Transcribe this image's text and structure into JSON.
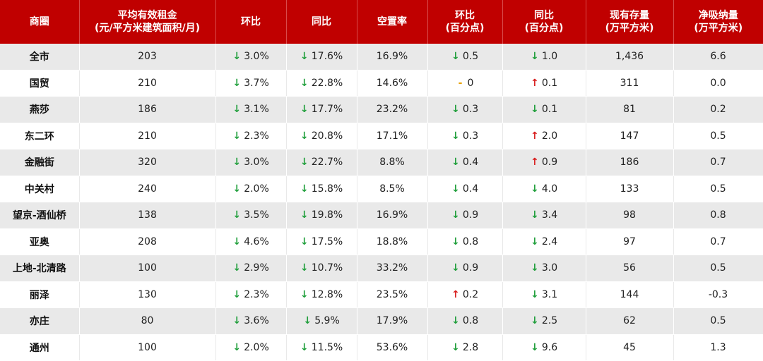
{
  "table": {
    "header": [
      [
        "商圈"
      ],
      [
        "平均有效租金",
        "(元/平方米建筑面积/月)"
      ],
      [
        "环比"
      ],
      [
        "同比"
      ],
      [
        "空置率"
      ],
      [
        "环比",
        "(百分点)"
      ],
      [
        "同比",
        "(百分点)"
      ],
      [
        "现有存量",
        "(万平方米)"
      ],
      [
        "净吸纳量",
        "(万平方米)"
      ]
    ],
    "rows": [
      [
        "全市",
        "203",
        [
          "↓",
          "3.0%"
        ],
        [
          "↓",
          "17.6%"
        ],
        "16.9%",
        [
          "↓",
          "0.5"
        ],
        [
          "↓",
          "1.0"
        ],
        "1,436",
        "6.6"
      ],
      [
        "国贸",
        "210",
        [
          "↓",
          "3.7%"
        ],
        [
          "↓",
          "22.8%"
        ],
        "14.6%",
        [
          "-",
          "0"
        ],
        [
          "↑",
          "0.1"
        ],
        "311",
        "0.0"
      ],
      [
        "燕莎",
        "186",
        [
          "↓",
          "3.1%"
        ],
        [
          "↓",
          "17.7%"
        ],
        "23.2%",
        [
          "↓",
          "0.3"
        ],
        [
          "↓",
          "0.1"
        ],
        "81",
        "0.2"
      ],
      [
        "东二环",
        "210",
        [
          "↓",
          "2.3%"
        ],
        [
          "↓",
          "20.8%"
        ],
        "17.1%",
        [
          "↓",
          "0.3"
        ],
        [
          "↑",
          "2.0"
        ],
        "147",
        "0.5"
      ],
      [
        "金融街",
        "320",
        [
          "↓",
          "3.0%"
        ],
        [
          "↓",
          "22.7%"
        ],
        "8.8%",
        [
          "↓",
          "0.4"
        ],
        [
          "↑",
          "0.9"
        ],
        "186",
        "0.7"
      ],
      [
        "中关村",
        "240",
        [
          "↓",
          "2.0%"
        ],
        [
          "↓",
          "15.8%"
        ],
        "8.5%",
        [
          "↓",
          "0.4"
        ],
        [
          "↓",
          "4.0"
        ],
        "133",
        "0.5"
      ],
      [
        "望京-酒仙桥",
        "138",
        [
          "↓",
          "3.5%"
        ],
        [
          "↓",
          "19.8%"
        ],
        "16.9%",
        [
          "↓",
          "0.9"
        ],
        [
          "↓",
          "3.4"
        ],
        "98",
        "0.8"
      ],
      [
        "亚奥",
        "208",
        [
          "↓",
          "4.6%"
        ],
        [
          "↓",
          "17.5%"
        ],
        "18.8%",
        [
          "↓",
          "0.8"
        ],
        [
          "↓",
          "2.4"
        ],
        "97",
        "0.7"
      ],
      [
        "上地-北清路",
        "100",
        [
          "↓",
          "2.9%"
        ],
        [
          "↓",
          "10.7%"
        ],
        "33.2%",
        [
          "↓",
          "0.9"
        ],
        [
          "↓",
          "3.0"
        ],
        "56",
        "0.5"
      ],
      [
        "丽泽",
        "130",
        [
          "↓",
          "2.3%"
        ],
        [
          "↓",
          "12.8%"
        ],
        "23.5%",
        [
          "↑",
          "0.2"
        ],
        [
          "↓",
          "3.1"
        ],
        "144",
        "-0.3"
      ],
      [
        "亦庄",
        "80",
        [
          "↓",
          "3.6%"
        ],
        [
          "↓",
          "5.9%"
        ],
        "17.9%",
        [
          "↓",
          "0.8"
        ],
        [
          "↓",
          "2.5"
        ],
        "62",
        "0.5"
      ],
      [
        "通州",
        "100",
        [
          "↓",
          "2.0%"
        ],
        [
          "↓",
          "11.5%"
        ],
        "53.6%",
        [
          "↓",
          "2.8"
        ],
        [
          "↓",
          "9.6"
        ],
        "45",
        "1.3"
      ]
    ]
  }
}
